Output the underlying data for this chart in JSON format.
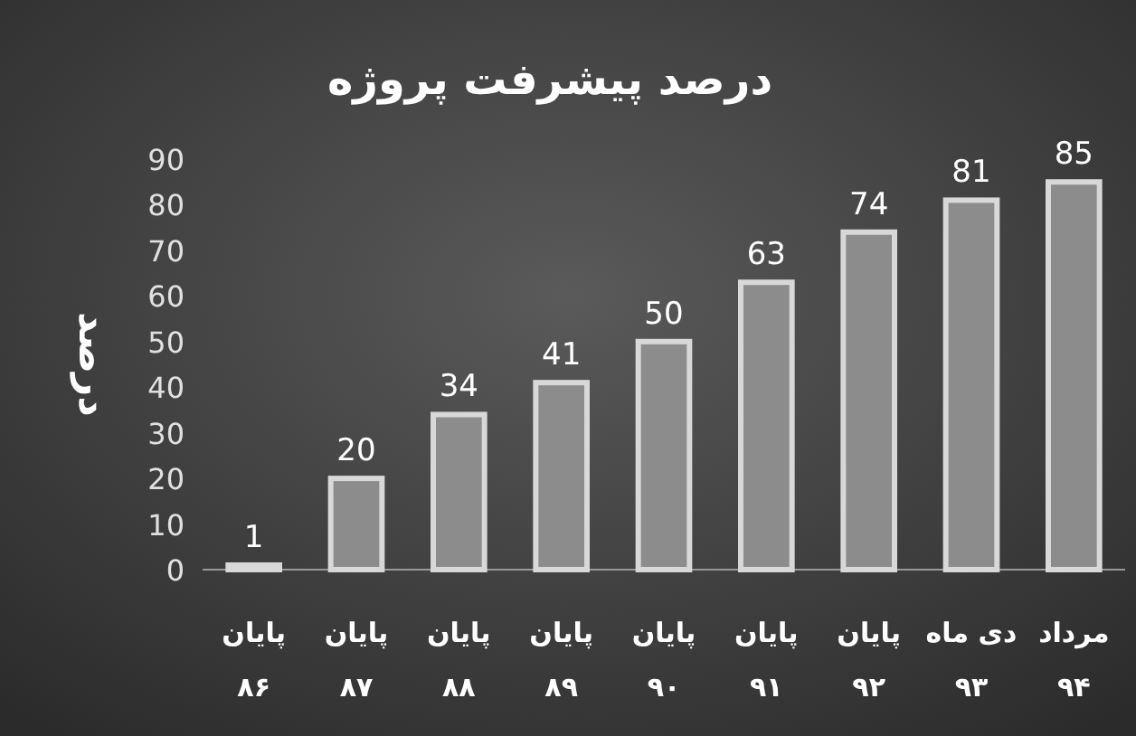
{
  "chart_data": {
    "type": "bar",
    "title": "درصد پیشرفت پروژه",
    "ylabel": "درصد",
    "categories": [
      "پایان\n۸۶",
      "پایان\n۸۷",
      "پایان\n۸۸",
      "پایان\n۸۹",
      "پایان\n۹۰",
      "پایان\n۹۱",
      "پایان\n۹۲",
      "دی ماه\n۹۳",
      "مرداد\n۹۴"
    ],
    "values": [
      1,
      20,
      34,
      41,
      50,
      63,
      74,
      81,
      85
    ],
    "color": "#8c8c8c",
    "ylim": [
      0,
      90
    ],
    "yticks": [
      0,
      10,
      20,
      30,
      40,
      50,
      60,
      70,
      80,
      90
    ],
    "data_labels": true
  }
}
